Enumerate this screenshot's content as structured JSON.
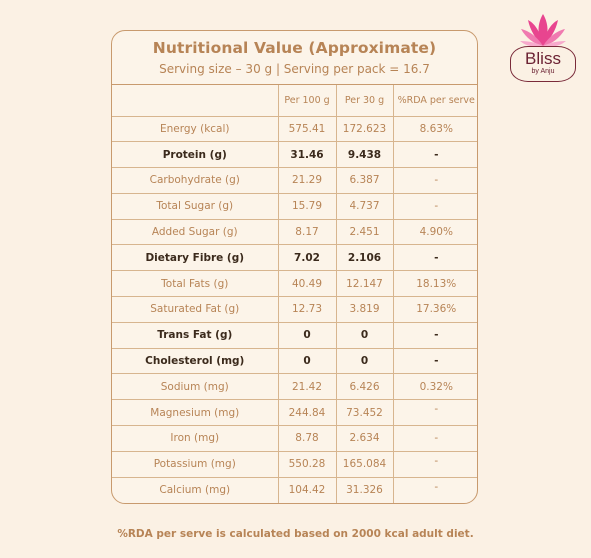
{
  "brand": {
    "name": "Bliss",
    "tagline": "by Anju",
    "colors": {
      "primary": "#6b2233",
      "lotus_pink": "#e8458f",
      "lotus_light": "#f7a9cc"
    }
  },
  "panel": {
    "title": "Nutritional Value (Approximate)",
    "serving": "Serving size – 30 g | Serving per pack = 16.7"
  },
  "table": {
    "headers": [
      "",
      "Per 100 g",
      "Per 30 g",
      "%RDA per serve"
    ],
    "rows": [
      {
        "nutrient": "Energy (kcal)",
        "per100": "575.41",
        "per30": "172.623",
        "rda": "8.63%",
        "bold": false
      },
      {
        "nutrient": "Protein (g)",
        "per100": "31.46",
        "per30": "9.438",
        "rda": "-",
        "bold": true
      },
      {
        "nutrient": "Carbohydrate (g)",
        "per100": "21.29",
        "per30": "6.387",
        "rda": "-",
        "bold": false
      },
      {
        "nutrient": "Total Sugar (g)",
        "per100": "15.79",
        "per30": "4.737",
        "rda": "-",
        "bold": false
      },
      {
        "nutrient": "Added Sugar (g)",
        "per100": "8.17",
        "per30": "2.451",
        "rda": "4.90%",
        "bold": false
      },
      {
        "nutrient": "Dietary Fibre (g)",
        "per100": "7.02",
        "per30": "2.106",
        "rda": "-",
        "bold": true
      },
      {
        "nutrient": "Total Fats (g)",
        "per100": "40.49",
        "per30": "12.147",
        "rda": "18.13%",
        "bold": false
      },
      {
        "nutrient": "Saturated Fat (g)",
        "per100": "12.73",
        "per30": "3.819",
        "rda": "17.36%",
        "bold": false
      },
      {
        "nutrient": "Trans Fat (g)",
        "per100": "0",
        "per30": "0",
        "rda": "-",
        "bold": true
      },
      {
        "nutrient": "Cholesterol (mg)",
        "per100": "0",
        "per30": "0",
        "rda": "-",
        "bold": true
      },
      {
        "nutrient": "Sodium (mg)",
        "per100": "21.42",
        "per30": "6.426",
        "rda": "0.32%",
        "bold": false
      },
      {
        "nutrient": "Magnesium (mg)",
        "per100": "244.84",
        "per30": "73.452",
        "rda": "-",
        "bold": false
      },
      {
        "nutrient": "Iron (mg)",
        "per100": "8.78",
        "per30": "2.634",
        "rda": "-",
        "bold": false
      },
      {
        "nutrient": "Potassium (mg)",
        "per100": "550.28",
        "per30": "165.084",
        "rda": "-",
        "bold": false
      },
      {
        "nutrient": "Calcium (mg)",
        "per100": "104.42",
        "per30": "31.326",
        "rda": "-",
        "bold": false
      }
    ]
  },
  "footnote": "%RDA per serve is calculated based on 2000 kcal adult diet.",
  "colors": {
    "background": "#fbf1e4",
    "accent": "#b78456",
    "border": "#c89a6e",
    "dark_text": "#3b2a1c"
  }
}
